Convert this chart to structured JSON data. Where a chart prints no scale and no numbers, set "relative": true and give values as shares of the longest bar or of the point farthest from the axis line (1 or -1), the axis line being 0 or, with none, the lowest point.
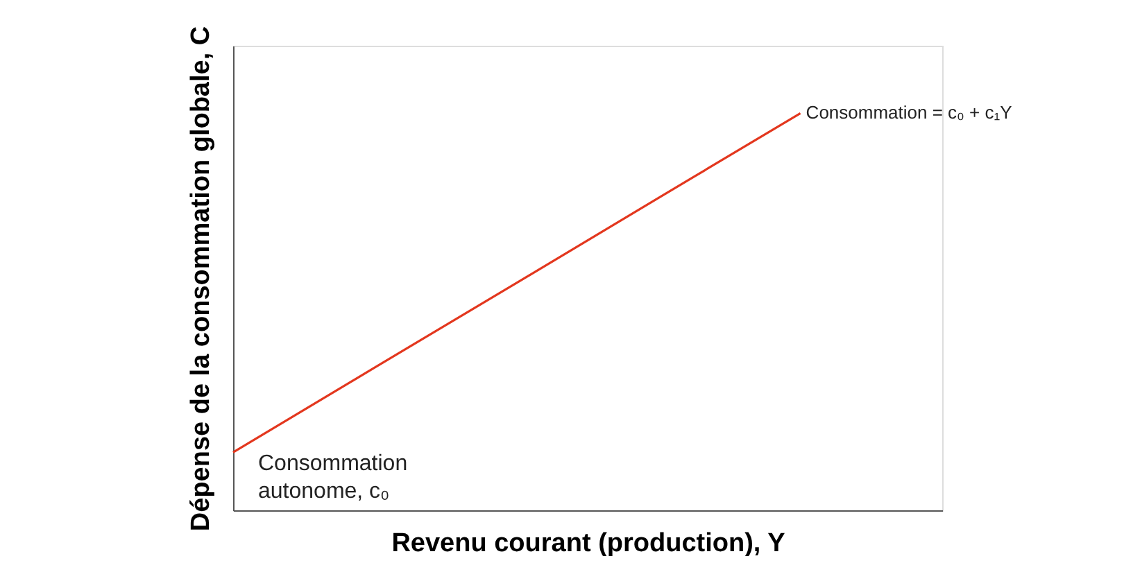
{
  "chart_data": {
    "type": "line",
    "relative": true,
    "xlabel": "Revenu courant (production), Y",
    "ylabel": "Dépense de la consommation globale, C",
    "categories": [
      null,
      null,
      null,
      null,
      null,
      null
    ],
    "series": [
      {
        "color": "#e3371e",
        "values": [
          0.146,
          0.36,
          0.573,
          0.787,
          1,
          null
        ]
      }
    ],
    "annotations": [
      "Consommation = c₀ + c₁Y",
      "Consommation autonome, c₀"
    ],
    "grid": false,
    "marker": "none",
    "line_style": "solid"
  }
}
